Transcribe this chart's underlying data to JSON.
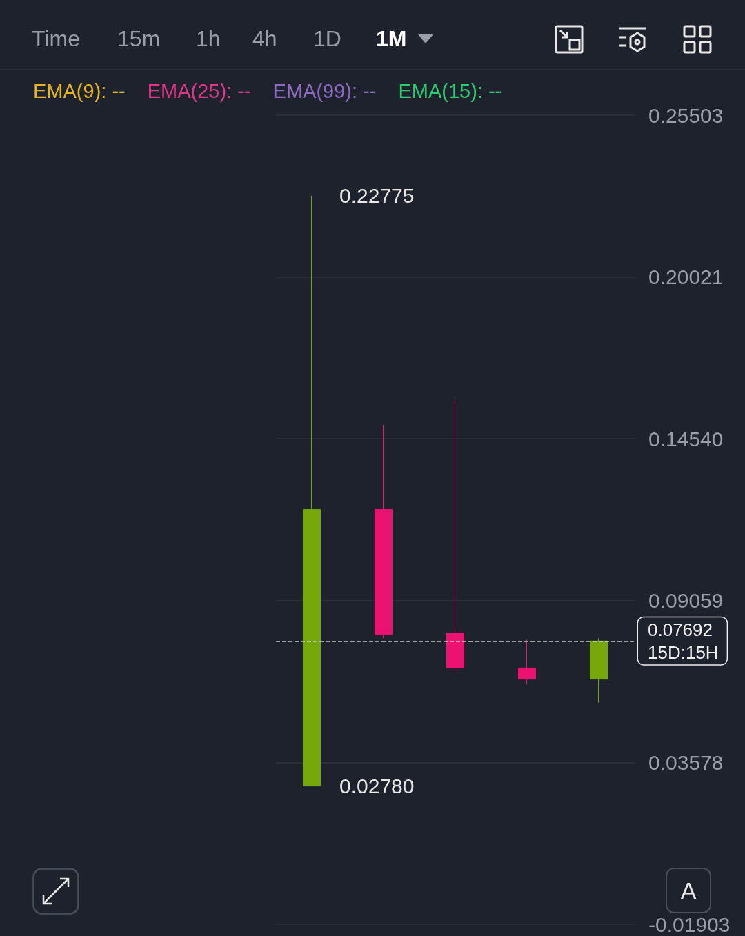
{
  "chart_data": {
    "type": "candlestick",
    "categories": [
      null,
      null,
      null,
      null,
      null
    ],
    "ohlc": [
      [
        0.0278,
        0.22775,
        0.0278,
        0.1215
      ],
      [
        0.1215,
        0.1502,
        0.0779,
        0.0792
      ],
      [
        0.0797,
        0.1588,
        0.0663,
        0.0678
      ],
      [
        0.0678,
        0.0774,
        0.0622,
        0.064
      ],
      [
        0.064,
        0.0779,
        0.056,
        0.07692
      ]
    ],
    "colors": [
      "#76a80c",
      "#ea1372",
      "#ea1372",
      "#ea1372",
      "#76a80c"
    ],
    "ylim": [
      -0.01903,
      0.25503
    ],
    "yticks": [
      -0.01903,
      0.03578,
      0.09059,
      {
        "value": 0.1454,
        "label": "0.14540"
      },
      0.20021,
      0.25503
    ],
    "grid": "y",
    "tick_labels": "y",
    "ref_lines": [
      {
        "axis": "y",
        "value": 0.07692,
        "label": "0.07692",
        "line_style": "dashed",
        "color": "#c8cad0"
      }
    ],
    "annotations": [
      "Time",
      "15m",
      "1h",
      "4h",
      "1D",
      "1M",
      "EMA(9): --",
      "EMA(25): --",
      "EMA(99): --",
      "EMA(15): --",
      "15D:15H",
      "A",
      "0.22775",
      "0.02780"
    ]
  }
}
